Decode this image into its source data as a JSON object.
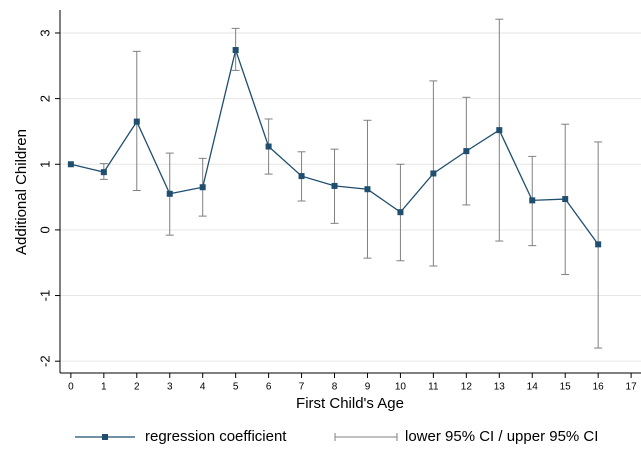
{
  "chart_data": {
    "type": "line",
    "x_label": "First Child's Age",
    "y_label": "Additional Children",
    "x": [
      0,
      1,
      2,
      3,
      4,
      5,
      6,
      7,
      8,
      9,
      10,
      11,
      12,
      13,
      14,
      15,
      16
    ],
    "series": [
      {
        "name": "regression coefficient",
        "color": "#1f4e6e",
        "values": [
          1.0,
          0.88,
          1.65,
          0.55,
          0.65,
          2.74,
          1.27,
          0.82,
          0.67,
          0.62,
          0.27,
          0.86,
          1.2,
          1.52,
          0.45,
          0.47,
          -0.22
        ]
      },
      {
        "name": "lower 95% CI / upper 95% CI",
        "color": "#808080",
        "lower": [
          null,
          0.77,
          0.6,
          -0.08,
          0.21,
          2.43,
          0.85,
          0.44,
          0.1,
          -0.43,
          -0.47,
          -0.55,
          0.38,
          -0.17,
          -0.24,
          -0.68,
          -1.8
        ],
        "upper": [
          null,
          1.01,
          2.72,
          1.17,
          1.09,
          3.07,
          1.69,
          1.19,
          1.23,
          1.67,
          1.0,
          2.27,
          2.02,
          3.21,
          1.12,
          1.61,
          1.34
        ]
      }
    ],
    "xlim": [
      -0.33,
      17.3
    ],
    "xticks": [
      0,
      1,
      2,
      3,
      4,
      5,
      6,
      7,
      8,
      9,
      10,
      11,
      12,
      13,
      14,
      15,
      16,
      17
    ],
    "ylim": [
      -2.18,
      3.35
    ],
    "yticks": [
      -2,
      -1,
      0,
      1,
      2,
      3
    ],
    "grid": true,
    "legend": "bottom"
  }
}
